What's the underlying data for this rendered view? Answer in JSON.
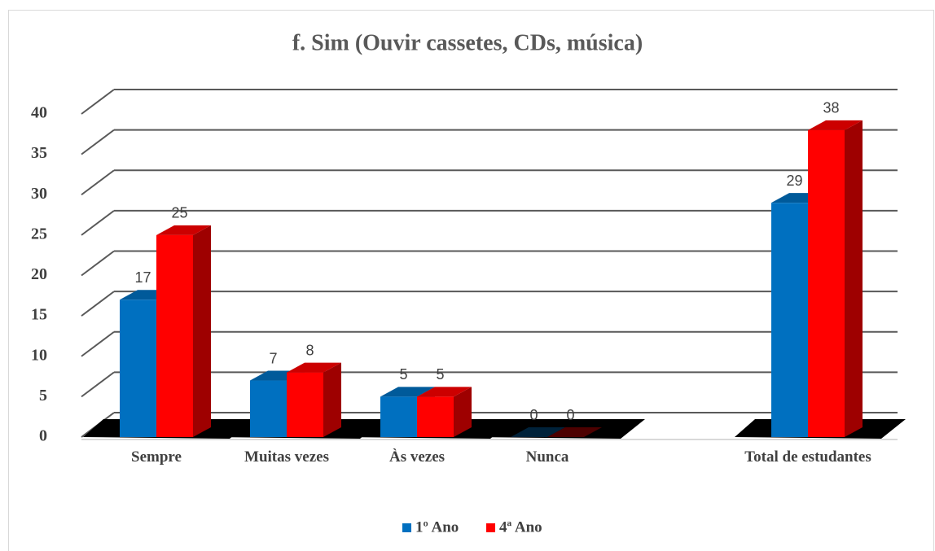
{
  "chart_data": {
    "type": "bar3d",
    "title": "f. Sim (Ouvir cassetes, CDs, música)",
    "categories": [
      "Sempre",
      "Muitas vezes",
      "Às vezes",
      "Nunca",
      null,
      "Total de estudantes"
    ],
    "series": [
      {
        "name": "1º Ano",
        "color": "#0070c0",
        "values": [
          17,
          7,
          5,
          0,
          null,
          29
        ]
      },
      {
        "name": "4ª Ano",
        "color": "#ff0000",
        "values": [
          25,
          8,
          5,
          0,
          null,
          38
        ]
      }
    ],
    "ylim": [
      0,
      40
    ],
    "yticks": [
      0,
      5,
      10,
      15,
      20,
      25,
      30,
      35,
      40
    ],
    "grid": true,
    "legend": "bottom"
  }
}
